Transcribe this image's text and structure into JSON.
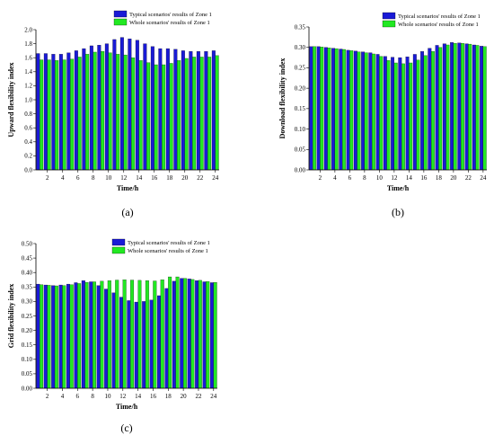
{
  "chart_data": [
    {
      "type": "bar",
      "panel_label": "(a)",
      "xlabel": "Time/h",
      "ylabel": "Upward flexibility index",
      "ylim": [
        0.0,
        2.0
      ],
      "yticks": [
        "0.0",
        "0.2",
        "0.4",
        "0.6",
        "0.8",
        "1.0",
        "1.2",
        "1.4",
        "1.6",
        "1.8",
        "2.0"
      ],
      "xticks": [
        "2",
        "4",
        "6",
        "8",
        "10",
        "12",
        "14",
        "16",
        "18",
        "20",
        "22",
        "24"
      ],
      "categories": [
        1,
        2,
        3,
        4,
        5,
        6,
        7,
        8,
        9,
        10,
        11,
        12,
        13,
        14,
        15,
        16,
        17,
        18,
        19,
        20,
        21,
        22,
        23,
        24
      ],
      "legend_position": "top",
      "series": [
        {
          "name": "Typical scenarios' results of Zone 1",
          "color": "#1a1ad6",
          "values": [
            1.66,
            1.66,
            1.65,
            1.65,
            1.67,
            1.7,
            1.73,
            1.77,
            1.78,
            1.8,
            1.86,
            1.89,
            1.87,
            1.85,
            1.8,
            1.76,
            1.73,
            1.73,
            1.72,
            1.7,
            1.69,
            1.69,
            1.69,
            1.7
          ]
        },
        {
          "name": "Whole scenarios' results of Zone 1",
          "color": "#22e822",
          "values": [
            1.57,
            1.57,
            1.56,
            1.57,
            1.58,
            1.61,
            1.65,
            1.68,
            1.69,
            1.67,
            1.65,
            1.64,
            1.6,
            1.56,
            1.53,
            1.5,
            1.5,
            1.52,
            1.56,
            1.59,
            1.61,
            1.61,
            1.61,
            1.63
          ]
        }
      ]
    },
    {
      "type": "bar",
      "panel_label": "(b)",
      "xlabel": "Time/h",
      "ylabel": "Download flexibility index",
      "ylim": [
        0.0,
        0.35
      ],
      "yticks": [
        "0.00",
        "0.05",
        "0.10",
        "0.15",
        "0.20",
        "0.25",
        "0.30",
        "0.35"
      ],
      "xticks": [
        "2",
        "4",
        "6",
        "8",
        "10",
        "12",
        "14",
        "16",
        "18",
        "20",
        "22",
        "24"
      ],
      "categories": [
        1,
        2,
        3,
        4,
        5,
        6,
        7,
        8,
        9,
        10,
        11,
        12,
        13,
        14,
        15,
        16,
        17,
        18,
        19,
        20,
        21,
        22,
        23,
        24
      ],
      "legend_position": "top",
      "series": [
        {
          "name": "Typical scenarios' results of Zone 1",
          "color": "#1a1ad6",
          "values": [
            0.302,
            0.302,
            0.3,
            0.298,
            0.296,
            0.293,
            0.291,
            0.289,
            0.287,
            0.283,
            0.278,
            0.276,
            0.275,
            0.277,
            0.283,
            0.29,
            0.298,
            0.305,
            0.309,
            0.312,
            0.311,
            0.309,
            0.306,
            0.303
          ]
        },
        {
          "name": "Whole scenarios' results of Zone 1",
          "color": "#22e822",
          "values": [
            0.302,
            0.301,
            0.299,
            0.297,
            0.295,
            0.292,
            0.289,
            0.287,
            0.284,
            0.278,
            0.268,
            0.262,
            0.26,
            0.262,
            0.269,
            0.28,
            0.29,
            0.3,
            0.306,
            0.31,
            0.31,
            0.308,
            0.305,
            0.302
          ]
        }
      ]
    },
    {
      "type": "bar",
      "panel_label": "(c)",
      "xlabel": "Time/h",
      "ylabel": "Grid flexibility index",
      "ylim": [
        0.0,
        0.5
      ],
      "yticks": [
        "0.00",
        "0.05",
        "0.10",
        "0.15",
        "0.20",
        "0.25",
        "0.30",
        "0.35",
        "0.40",
        "0.45",
        "0.50"
      ],
      "xticks": [
        "2",
        "4",
        "6",
        "8",
        "10",
        "12",
        "14",
        "16",
        "18",
        "20",
        "22",
        "24"
      ],
      "categories": [
        1,
        2,
        3,
        4,
        5,
        6,
        7,
        8,
        9,
        10,
        11,
        12,
        13,
        14,
        15,
        16,
        17,
        18,
        19,
        20,
        21,
        22,
        23,
        24
      ],
      "legend_position": "top",
      "series": [
        {
          "name": "Typical scenarios' results of Zone 1",
          "color": "#1a1ad6",
          "values": [
            0.36,
            0.357,
            0.355,
            0.357,
            0.36,
            0.365,
            0.372,
            0.368,
            0.355,
            0.343,
            0.33,
            0.315,
            0.303,
            0.298,
            0.3,
            0.305,
            0.32,
            0.345,
            0.37,
            0.38,
            0.378,
            0.372,
            0.368,
            0.365
          ]
        },
        {
          "name": "Whole scenarios' results of Zone 1",
          "color": "#22e822",
          "values": [
            0.358,
            0.356,
            0.354,
            0.355,
            0.358,
            0.362,
            0.366,
            0.368,
            0.37,
            0.372,
            0.374,
            0.375,
            0.374,
            0.373,
            0.372,
            0.371,
            0.375,
            0.385,
            0.385,
            0.38,
            0.376,
            0.373,
            0.369,
            0.366
          ]
        }
      ]
    }
  ]
}
